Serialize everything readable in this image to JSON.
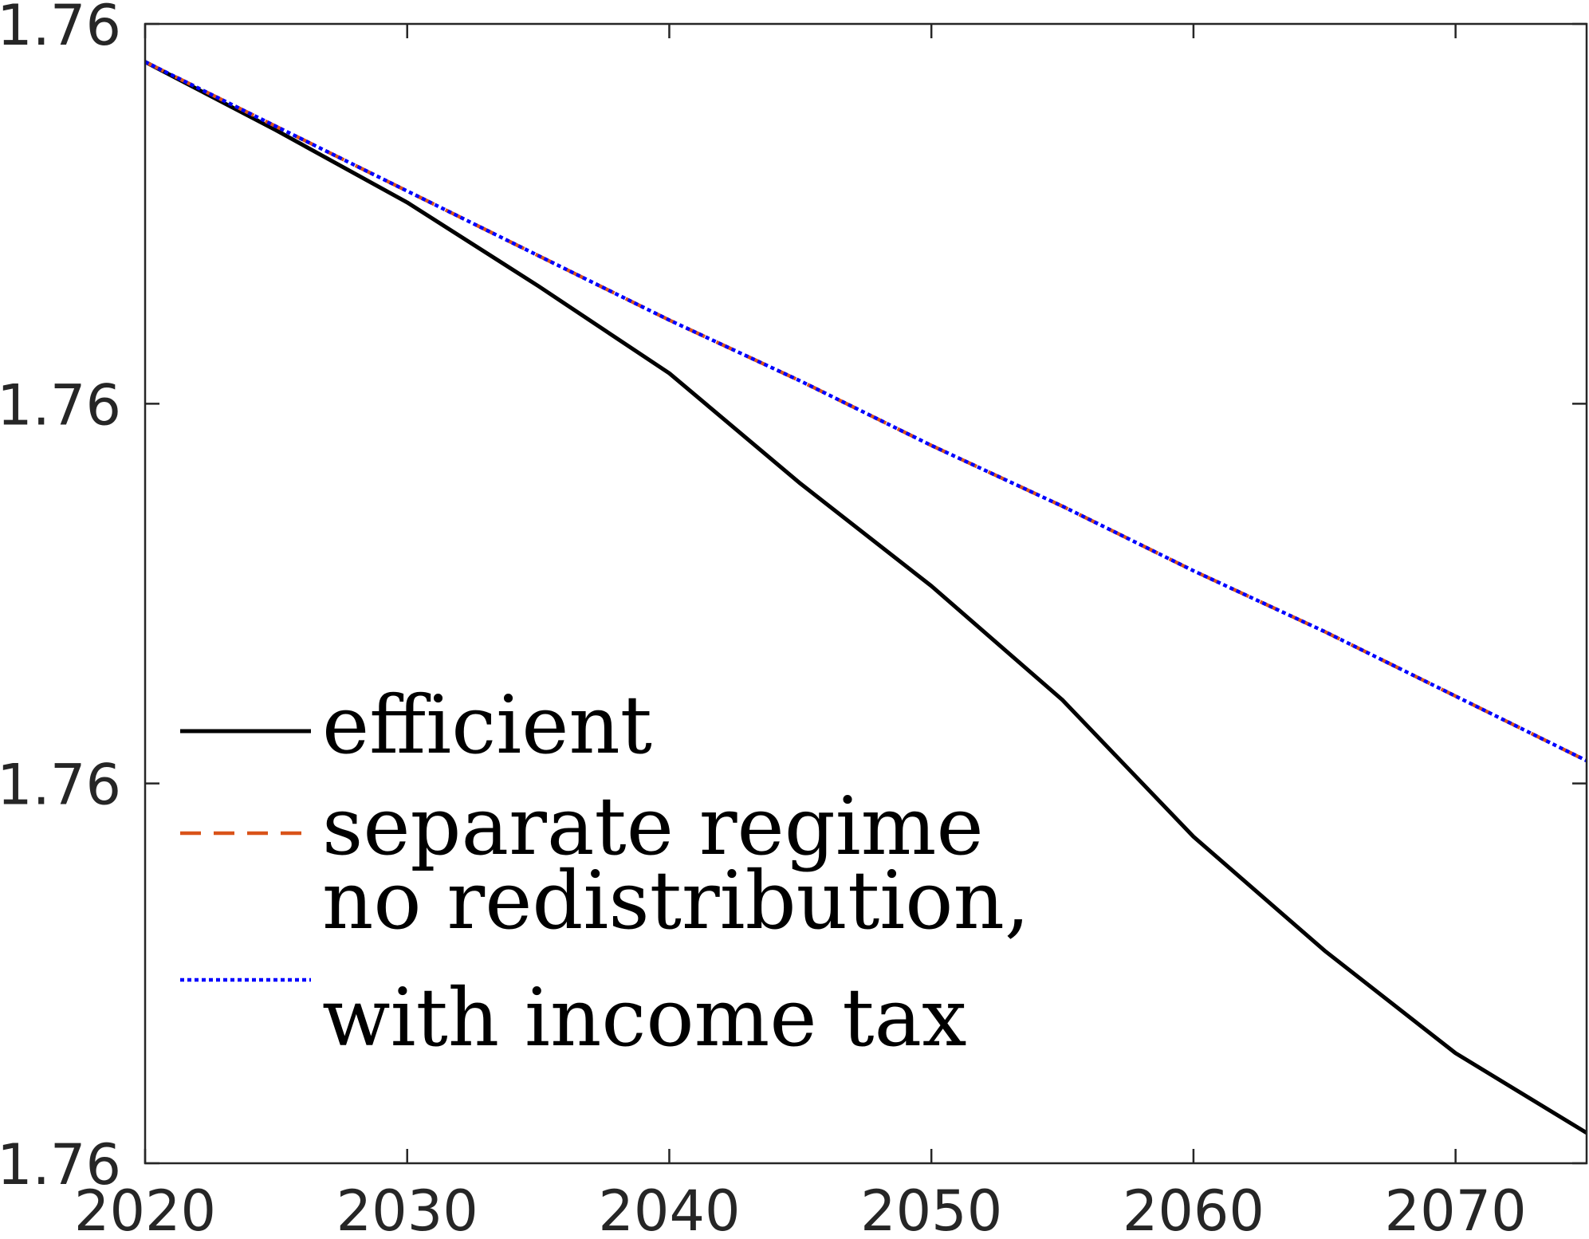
{
  "chart_data": {
    "type": "line",
    "title": "",
    "xlabel": "",
    "ylabel": "",
    "x": [
      2020,
      2025,
      2030,
      2035,
      2040,
      2045,
      2050,
      2055,
      2060,
      2065,
      2070,
      2075
    ],
    "xlim": [
      2020,
      2075
    ],
    "ylim": [
      0,
      3
    ],
    "xticks": [
      "2020",
      "2030",
      "2040",
      "2050",
      "2060",
      "2070"
    ],
    "yticks": [
      "1.76",
      "1.76",
      "1.76",
      "1.76"
    ],
    "grid": false,
    "legend_position": "bottom-left",
    "series": [
      {
        "name": "efficient",
        "color": "#000000",
        "style": "solid",
        "values": [
          2.9,
          2.72,
          2.53,
          2.31,
          2.08,
          1.79,
          1.52,
          1.22,
          0.86,
          0.56,
          0.29,
          0.08
        ]
      },
      {
        "name": "separate regime",
        "color": "#D95319",
        "style": "dashed",
        "values": [
          2.9,
          2.73,
          2.56,
          2.39,
          2.22,
          2.06,
          1.89,
          1.73,
          1.56,
          1.4,
          1.23,
          1.06
        ]
      },
      {
        "name_lines": [
          "no redistribution,",
          "with income tax"
        ],
        "color": "#0000FF",
        "style": "dotted",
        "values": [
          2.9,
          2.73,
          2.56,
          2.39,
          2.22,
          2.06,
          1.89,
          1.73,
          1.56,
          1.4,
          1.23,
          1.06
        ]
      }
    ]
  }
}
